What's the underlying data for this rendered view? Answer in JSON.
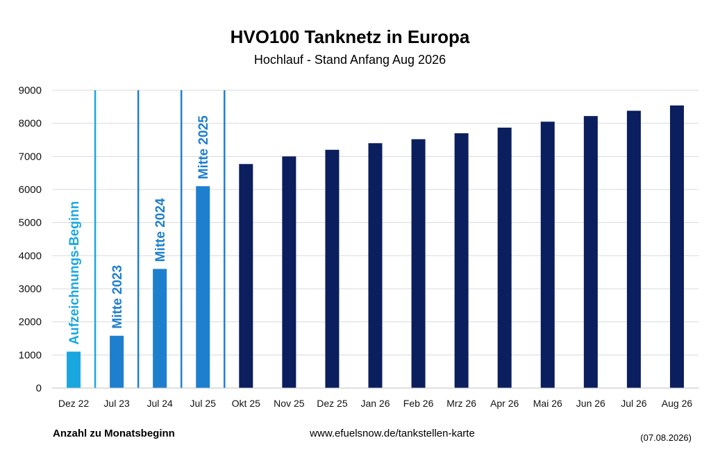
{
  "chart_data": {
    "type": "bar",
    "title": "HVO100 Tanknetz in Europa",
    "subtitle": "Hochlauf - Stand Anfang Aug 2026",
    "categories": [
      "Dez 22",
      "Jul 23",
      "Jul 24",
      "Jul 25",
      "Okt 25",
      "Nov 25",
      "Dez 25",
      "Jan 26",
      "Feb 26",
      "Mrz 26",
      "Apr 26",
      "Mai 26",
      "Jun 26",
      "Jul 26",
      "Aug 26"
    ],
    "values": [
      1100,
      1580,
      3600,
      6100,
      6770,
      7000,
      7200,
      7400,
      7520,
      7700,
      7870,
      8050,
      8220,
      8380,
      8540
    ],
    "bar_colors": [
      "#1aa7e0",
      "#1e7fcf",
      "#1e7fcf",
      "#1e7fcf",
      "#0b1e5e",
      "#0b1e5e",
      "#0b1e5e",
      "#0b1e5e",
      "#0b1e5e",
      "#0b1e5e",
      "#0b1e5e",
      "#0b1e5e",
      "#0b1e5e",
      "#0b1e5e",
      "#0b1e5e"
    ],
    "ylim": [
      0,
      9000
    ],
    "yticks": [
      0,
      1000,
      2000,
      3000,
      4000,
      5000,
      6000,
      7000,
      8000,
      9000
    ],
    "grid": true,
    "annotations": [
      {
        "text": "Aufzeichnungs-Beginn",
        "bar_index": 0,
        "color": "#1aa7e0"
      },
      {
        "text": "Mitte 2023",
        "bar_index": 1,
        "color": "#1e7fcf"
      },
      {
        "text": "Mitte 2024",
        "bar_index": 2,
        "color": "#1e7fcf"
      },
      {
        "text": "Mitte 2025",
        "bar_index": 3,
        "color": "#1e7fcf"
      }
    ],
    "separator_colors": [
      "#1aa7e0",
      "#1e7fcf",
      "#1e7fcf",
      "#1e7fcf"
    ]
  },
  "footer": {
    "left": "Anzahl zu Monatsbeginn",
    "center": "www.efuelsnow.de/tankstellen-karte",
    "right": "(07.08.2026)"
  }
}
